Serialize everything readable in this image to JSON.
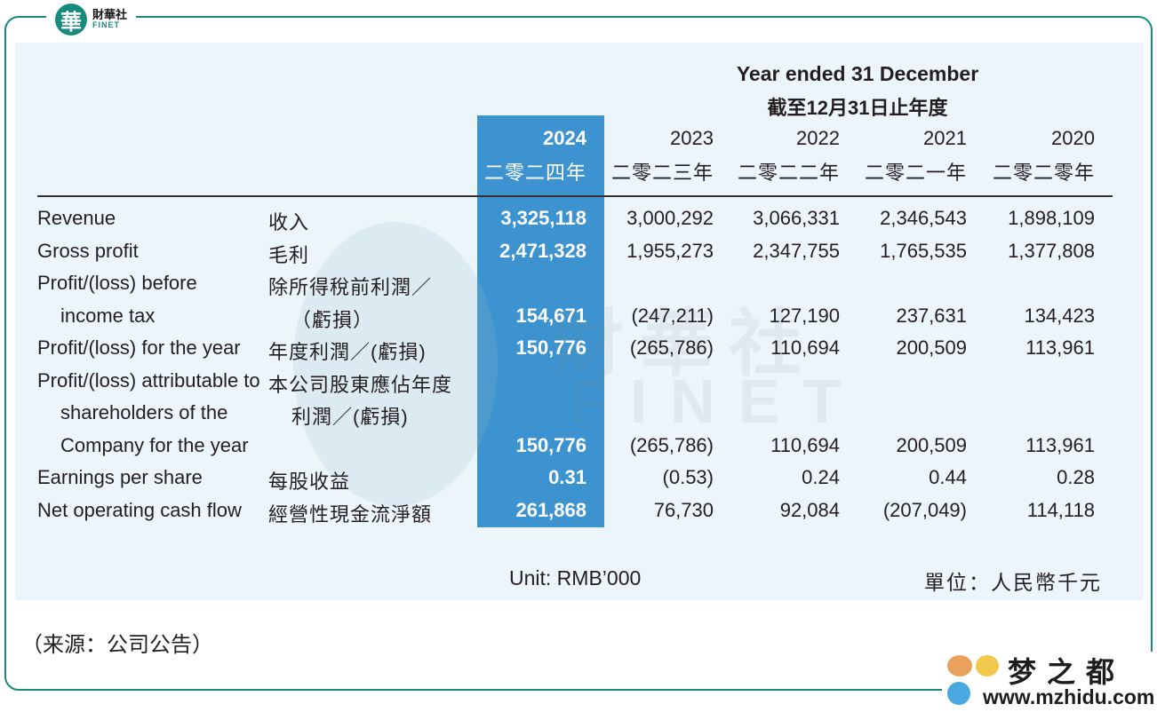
{
  "brand_header": {
    "mark": "華",
    "name_cn": "財華社",
    "name_en": "FINET"
  },
  "watermark": {
    "cn": "財華社",
    "en": "FINET"
  },
  "table": {
    "title_en": "Year ended 31 December",
    "title_cn": "截至12月31日止年度",
    "columns": [
      {
        "year": "2024",
        "year_cn": "二零二四年",
        "highlight": true
      },
      {
        "year": "2023",
        "year_cn": "二零二三年"
      },
      {
        "year": "2022",
        "year_cn": "二零二二年"
      },
      {
        "year": "2021",
        "year_cn": "二零二一年"
      },
      {
        "year": "2020",
        "year_cn": "二零二零年"
      }
    ],
    "rows": [
      {
        "label_en": [
          "Revenue"
        ],
        "label_cn": [
          "收入"
        ],
        "values": [
          "3,325,118",
          "3,000,292",
          "3,066,331",
          "2,346,543",
          "1,898,109"
        ]
      },
      {
        "label_en": [
          "Gross profit"
        ],
        "label_cn": [
          "毛利"
        ],
        "values": [
          "2,471,328",
          "1,955,273",
          "2,347,755",
          "1,765,535",
          "1,377,808"
        ]
      },
      {
        "label_en": [
          "Profit/(loss) before",
          "income tax"
        ],
        "label_cn": [
          "除所得稅前利潤／",
          "（虧損）"
        ],
        "values": [
          "154,671",
          "(247,211)",
          "127,190",
          "237,631",
          "134,423"
        ]
      },
      {
        "label_en": [
          "Profit/(loss) for the year"
        ],
        "label_cn": [
          "年度利潤／(虧損)"
        ],
        "values": [
          "150,776",
          "(265,786)",
          "110,694",
          "200,509",
          "113,961"
        ]
      },
      {
        "label_en": [
          "Profit/(loss) attributable to",
          "shareholders of the",
          "Company for the year"
        ],
        "label_cn": [
          "本公司股東應佔年度",
          "利潤／(虧損)"
        ],
        "values": [
          "150,776",
          "(265,786)",
          "110,694",
          "200,509",
          "113,961"
        ]
      },
      {
        "label_en": [
          "Earnings per share"
        ],
        "label_cn": [
          "每股收益"
        ],
        "values": [
          "0.31",
          "(0.53)",
          "0.24",
          "0.44",
          "0.28"
        ]
      },
      {
        "label_en": [
          "Net operating cash flow"
        ],
        "label_cn": [
          "經營性現金流淨額"
        ],
        "values": [
          "261,868",
          "76,730",
          "92,084",
          "(207,049)",
          "114,118"
        ]
      }
    ],
    "unit_en": "Unit: RMB’000",
    "unit_cn": "單位：人民幣千元"
  },
  "source": "（来源：公司公告）",
  "footer_brand": {
    "name_cn": "梦之都",
    "url": "www.mzhidu.com"
  },
  "colors": {
    "teal": "#1a8a7e",
    "highlight": "#3d93cf",
    "panel": "#ecf5fa"
  }
}
